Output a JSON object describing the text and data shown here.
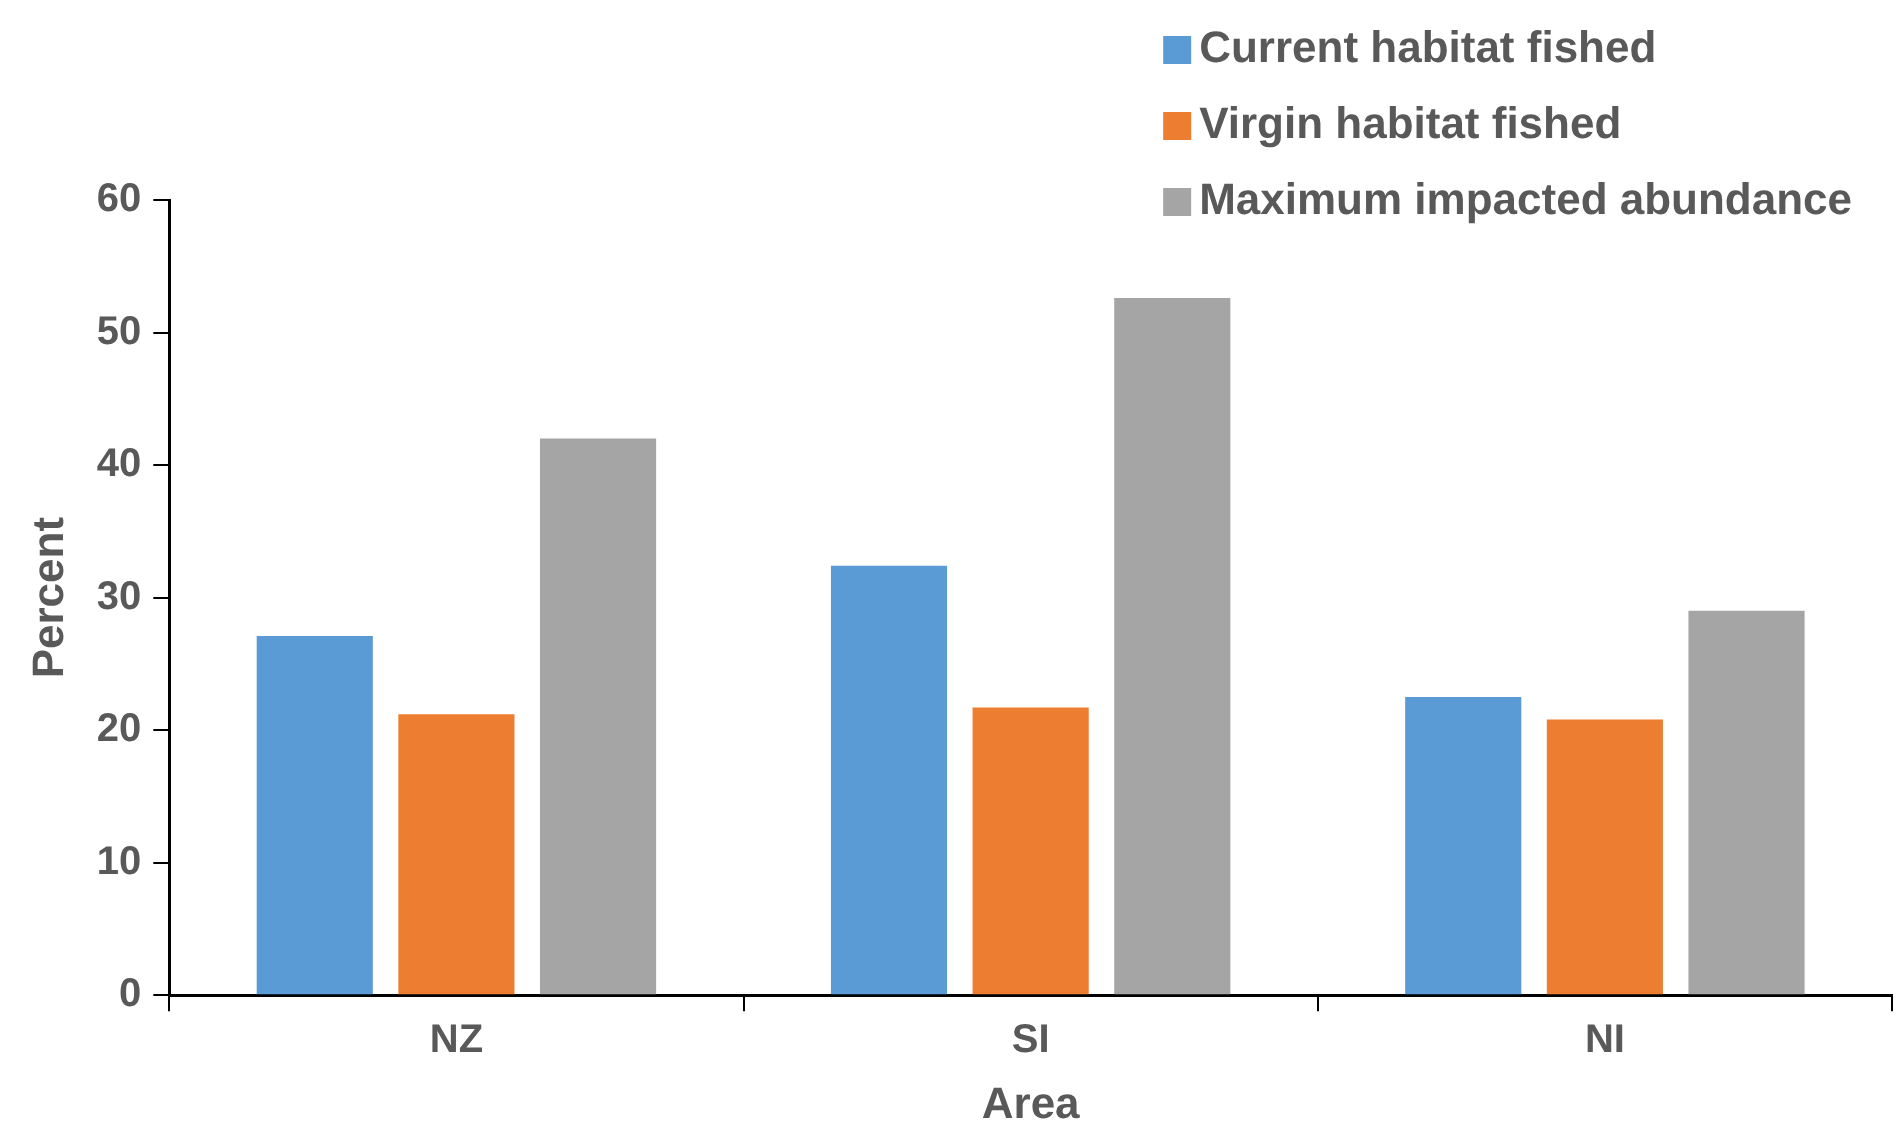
{
  "chart_data": {
    "type": "bar",
    "xlabel": "Area",
    "ylabel": "Percent",
    "categories": [
      "NZ",
      "SI",
      "NI"
    ],
    "series": [
      {
        "name": "Current habitat fished",
        "color": "#5b9bd5",
        "values": [
          27.1,
          32.4,
          22.5
        ]
      },
      {
        "name": "Virgin habitat fished",
        "color": "#ed7d31",
        "values": [
          21.2,
          21.7,
          20.8
        ]
      },
      {
        "name": "Maximum impacted abundance",
        "color": "#a5a5a5",
        "values": [
          42.0,
          52.6,
          29.0
        ]
      }
    ],
    "ylim": [
      0,
      60
    ],
    "yticks": [
      0,
      10,
      20,
      30,
      40,
      50,
      60
    ],
    "grid": false,
    "legend": "top right"
  }
}
